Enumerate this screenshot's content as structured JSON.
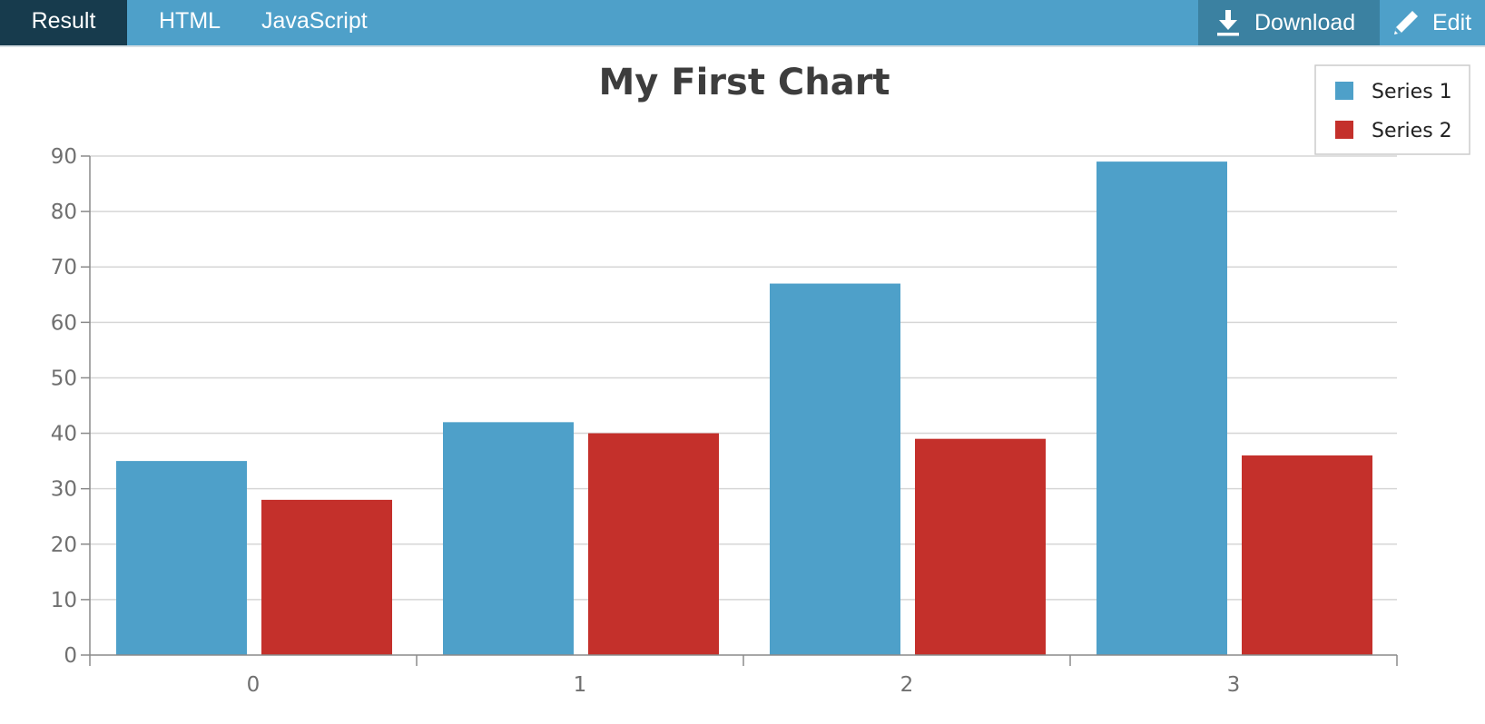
{
  "tabs": [
    {
      "label": "Result",
      "active": true
    },
    {
      "label": "HTML",
      "active": false
    },
    {
      "label": "JavaScript",
      "active": false
    }
  ],
  "actions": {
    "download": {
      "label": "Download",
      "icon": "download-icon"
    },
    "edit": {
      "label": "Edit",
      "icon": "pencil-icon"
    }
  },
  "colors": {
    "topbar": "#4ea0c9",
    "tab_active": "#173b4d",
    "download_bg": "#3b81a1",
    "series1": "#4ea0c9",
    "series2": "#c4302b"
  },
  "chart_data": {
    "type": "bar",
    "title": "My First Chart",
    "categories": [
      "0",
      "1",
      "2",
      "3"
    ],
    "series": [
      {
        "name": "Series 1",
        "values": [
          35,
          42,
          67,
          89
        ]
      },
      {
        "name": "Series 2",
        "values": [
          28,
          40,
          39,
          36
        ]
      }
    ],
    "yticks": [
      0,
      10,
      20,
      30,
      40,
      50,
      60,
      70,
      80,
      90
    ],
    "ylim": [
      0,
      90
    ],
    "xlabel": "",
    "ylabel": "",
    "grid": true,
    "legend_position": "top-right"
  }
}
